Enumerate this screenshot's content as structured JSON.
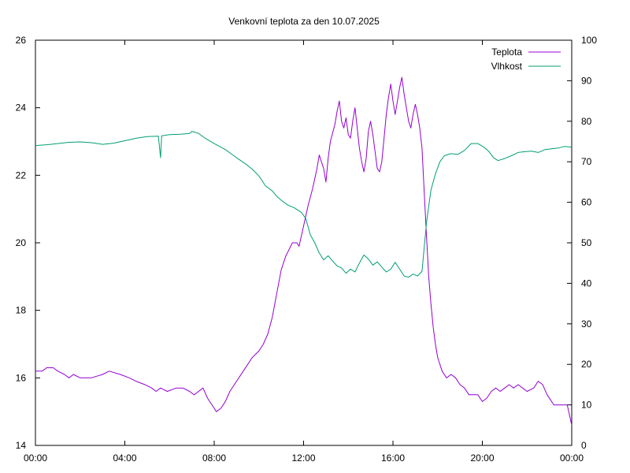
{
  "chart_data": {
    "type": "line",
    "title": "Venkovní teplota za den 10.07.2025",
    "xlabel": "",
    "ylabel": "",
    "y2label": "",
    "x_range_hours": [
      0,
      24
    ],
    "x_ticks": [
      "00:00",
      "04:00",
      "08:00",
      "12:00",
      "16:00",
      "20:00",
      "00:00"
    ],
    "ylim": [
      14,
      26
    ],
    "y_ticks": [
      14,
      16,
      18,
      20,
      22,
      24,
      26
    ],
    "y2lim": [
      0,
      100
    ],
    "y2_ticks": [
      0,
      10,
      20,
      30,
      40,
      50,
      60,
      70,
      80,
      90,
      100
    ],
    "grid": false,
    "legend_position": "top-right",
    "series": [
      {
        "name": "Teplota",
        "axis": "left",
        "color": "#9400d3",
        "points": [
          [
            0.0,
            16.2
          ],
          [
            0.3,
            16.2
          ],
          [
            0.5,
            16.3
          ],
          [
            0.8,
            16.3
          ],
          [
            1.0,
            16.2
          ],
          [
            1.3,
            16.1
          ],
          [
            1.5,
            16.0
          ],
          [
            1.7,
            16.1
          ],
          [
            2.0,
            16.0
          ],
          [
            2.5,
            16.0
          ],
          [
            3.0,
            16.1
          ],
          [
            3.3,
            16.2
          ],
          [
            3.8,
            16.1
          ],
          [
            4.2,
            16.0
          ],
          [
            4.5,
            15.9
          ],
          [
            4.9,
            15.8
          ],
          [
            5.2,
            15.7
          ],
          [
            5.4,
            15.6
          ],
          [
            5.6,
            15.7
          ],
          [
            5.9,
            15.6
          ],
          [
            6.3,
            15.7
          ],
          [
            6.6,
            15.7
          ],
          [
            6.9,
            15.6
          ],
          [
            7.1,
            15.5
          ],
          [
            7.3,
            15.6
          ],
          [
            7.5,
            15.7
          ],
          [
            7.7,
            15.4
          ],
          [
            7.9,
            15.2
          ],
          [
            8.0,
            15.1
          ],
          [
            8.1,
            15.0
          ],
          [
            8.3,
            15.1
          ],
          [
            8.5,
            15.3
          ],
          [
            8.7,
            15.6
          ],
          [
            9.0,
            15.9
          ],
          [
            9.3,
            16.2
          ],
          [
            9.5,
            16.4
          ],
          [
            9.7,
            16.6
          ],
          [
            10.0,
            16.8
          ],
          [
            10.2,
            17.0
          ],
          [
            10.4,
            17.3
          ],
          [
            10.6,
            17.8
          ],
          [
            10.8,
            18.5
          ],
          [
            11.0,
            19.2
          ],
          [
            11.2,
            19.6
          ],
          [
            11.5,
            20.0
          ],
          [
            11.7,
            20.0
          ],
          [
            11.8,
            19.9
          ],
          [
            12.0,
            20.5
          ],
          [
            12.2,
            21.1
          ],
          [
            12.4,
            21.6
          ],
          [
            12.5,
            21.9
          ],
          [
            12.6,
            22.2
          ],
          [
            12.7,
            22.6
          ],
          [
            12.9,
            22.2
          ],
          [
            13.0,
            21.8
          ],
          [
            13.1,
            22.5
          ],
          [
            13.2,
            23.0
          ],
          [
            13.4,
            23.5
          ],
          [
            13.5,
            23.9
          ],
          [
            13.6,
            24.2
          ],
          [
            13.7,
            23.6
          ],
          [
            13.8,
            23.4
          ],
          [
            13.9,
            23.7
          ],
          [
            14.0,
            23.2
          ],
          [
            14.1,
            23.1
          ],
          [
            14.2,
            23.6
          ],
          [
            14.3,
            24.0
          ],
          [
            14.4,
            23.4
          ],
          [
            14.5,
            22.8
          ],
          [
            14.6,
            22.4
          ],
          [
            14.7,
            22.1
          ],
          [
            14.8,
            22.5
          ],
          [
            14.9,
            23.3
          ],
          [
            15.0,
            23.6
          ],
          [
            15.1,
            23.2
          ],
          [
            15.2,
            22.7
          ],
          [
            15.3,
            22.2
          ],
          [
            15.4,
            22.1
          ],
          [
            15.5,
            22.4
          ],
          [
            15.6,
            23.1
          ],
          [
            15.7,
            23.8
          ],
          [
            15.8,
            24.3
          ],
          [
            15.9,
            24.7
          ],
          [
            16.0,
            24.2
          ],
          [
            16.1,
            23.8
          ],
          [
            16.2,
            24.2
          ],
          [
            16.3,
            24.6
          ],
          [
            16.4,
            24.9
          ],
          [
            16.5,
            24.4
          ],
          [
            16.6,
            24.0
          ],
          [
            16.7,
            23.6
          ],
          [
            16.8,
            23.4
          ],
          [
            16.9,
            23.8
          ],
          [
            17.0,
            24.1
          ],
          [
            17.1,
            23.8
          ],
          [
            17.2,
            23.4
          ],
          [
            17.3,
            22.8
          ],
          [
            17.4,
            21.5
          ],
          [
            17.5,
            20.2
          ],
          [
            17.6,
            19.0
          ],
          [
            17.7,
            18.2
          ],
          [
            17.8,
            17.5
          ],
          [
            17.9,
            17.0
          ],
          [
            18.0,
            16.6
          ],
          [
            18.2,
            16.2
          ],
          [
            18.4,
            16.0
          ],
          [
            18.6,
            16.1
          ],
          [
            18.8,
            16.0
          ],
          [
            19.0,
            15.8
          ],
          [
            19.2,
            15.7
          ],
          [
            19.4,
            15.5
          ],
          [
            19.6,
            15.5
          ],
          [
            19.8,
            15.5
          ],
          [
            20.0,
            15.3
          ],
          [
            20.2,
            15.4
          ],
          [
            20.4,
            15.6
          ],
          [
            20.6,
            15.7
          ],
          [
            20.8,
            15.6
          ],
          [
            21.0,
            15.7
          ],
          [
            21.2,
            15.8
          ],
          [
            21.4,
            15.7
          ],
          [
            21.6,
            15.8
          ],
          [
            21.8,
            15.7
          ],
          [
            22.0,
            15.6
          ],
          [
            22.3,
            15.7
          ],
          [
            22.5,
            15.9
          ],
          [
            22.7,
            15.8
          ],
          [
            22.9,
            15.5
          ],
          [
            23.2,
            15.2
          ],
          [
            23.5,
            15.2
          ],
          [
            23.8,
            15.2
          ],
          [
            24.0,
            14.6
          ]
        ]
      },
      {
        "name": "Vlhkost",
        "axis": "right",
        "color": "#009e73",
        "points": [
          [
            0.0,
            74.0
          ],
          [
            0.5,
            74.2
          ],
          [
            1.0,
            74.5
          ],
          [
            1.5,
            74.8
          ],
          [
            2.0,
            74.9
          ],
          [
            2.5,
            74.7
          ],
          [
            3.0,
            74.3
          ],
          [
            3.5,
            74.6
          ],
          [
            4.0,
            75.2
          ],
          [
            4.5,
            75.8
          ],
          [
            5.0,
            76.2
          ],
          [
            5.5,
            76.3
          ],
          [
            5.6,
            71.0
          ],
          [
            5.65,
            76.4
          ],
          [
            6.0,
            76.7
          ],
          [
            6.5,
            76.8
          ],
          [
            6.9,
            77.0
          ],
          [
            7.0,
            77.5
          ],
          [
            7.3,
            77.0
          ],
          [
            7.6,
            75.8
          ],
          [
            8.0,
            74.5
          ],
          [
            8.5,
            73.0
          ],
          [
            8.8,
            71.8
          ],
          [
            9.0,
            71.0
          ],
          [
            9.4,
            69.5
          ],
          [
            9.7,
            68.2
          ],
          [
            10.0,
            66.5
          ],
          [
            10.3,
            64.0
          ],
          [
            10.6,
            62.8
          ],
          [
            10.8,
            61.5
          ],
          [
            11.0,
            60.5
          ],
          [
            11.3,
            59.3
          ],
          [
            11.6,
            58.6
          ],
          [
            11.9,
            57.5
          ],
          [
            12.1,
            56.0
          ],
          [
            12.3,
            52.0
          ],
          [
            12.5,
            50.0
          ],
          [
            12.7,
            47.5
          ],
          [
            12.9,
            45.8
          ],
          [
            13.1,
            46.8
          ],
          [
            13.3,
            45.5
          ],
          [
            13.5,
            44.3
          ],
          [
            13.7,
            43.8
          ],
          [
            13.9,
            42.5
          ],
          [
            14.1,
            43.5
          ],
          [
            14.3,
            42.8
          ],
          [
            14.5,
            45.0
          ],
          [
            14.7,
            47.0
          ],
          [
            14.9,
            46.0
          ],
          [
            15.1,
            44.5
          ],
          [
            15.3,
            45.3
          ],
          [
            15.5,
            44.0
          ],
          [
            15.7,
            42.8
          ],
          [
            15.9,
            43.5
          ],
          [
            16.1,
            45.2
          ],
          [
            16.3,
            43.5
          ],
          [
            16.5,
            41.8
          ],
          [
            16.7,
            41.5
          ],
          [
            16.9,
            42.3
          ],
          [
            17.1,
            41.8
          ],
          [
            17.3,
            43.0
          ],
          [
            17.5,
            55.0
          ],
          [
            17.7,
            63.0
          ],
          [
            17.9,
            67.0
          ],
          [
            18.1,
            70.0
          ],
          [
            18.3,
            71.5
          ],
          [
            18.6,
            72.0
          ],
          [
            18.9,
            71.8
          ],
          [
            19.2,
            72.8
          ],
          [
            19.5,
            74.5
          ],
          [
            19.8,
            74.5
          ],
          [
            20.1,
            73.5
          ],
          [
            20.3,
            72.5
          ],
          [
            20.5,
            71.0
          ],
          [
            20.7,
            70.3
          ],
          [
            21.0,
            70.8
          ],
          [
            21.3,
            71.5
          ],
          [
            21.6,
            72.3
          ],
          [
            21.9,
            72.5
          ],
          [
            22.2,
            72.6
          ],
          [
            22.5,
            72.3
          ],
          [
            22.8,
            73.0
          ],
          [
            23.1,
            73.2
          ],
          [
            23.4,
            73.4
          ],
          [
            23.7,
            73.8
          ],
          [
            24.0,
            73.6
          ]
        ]
      }
    ]
  }
}
